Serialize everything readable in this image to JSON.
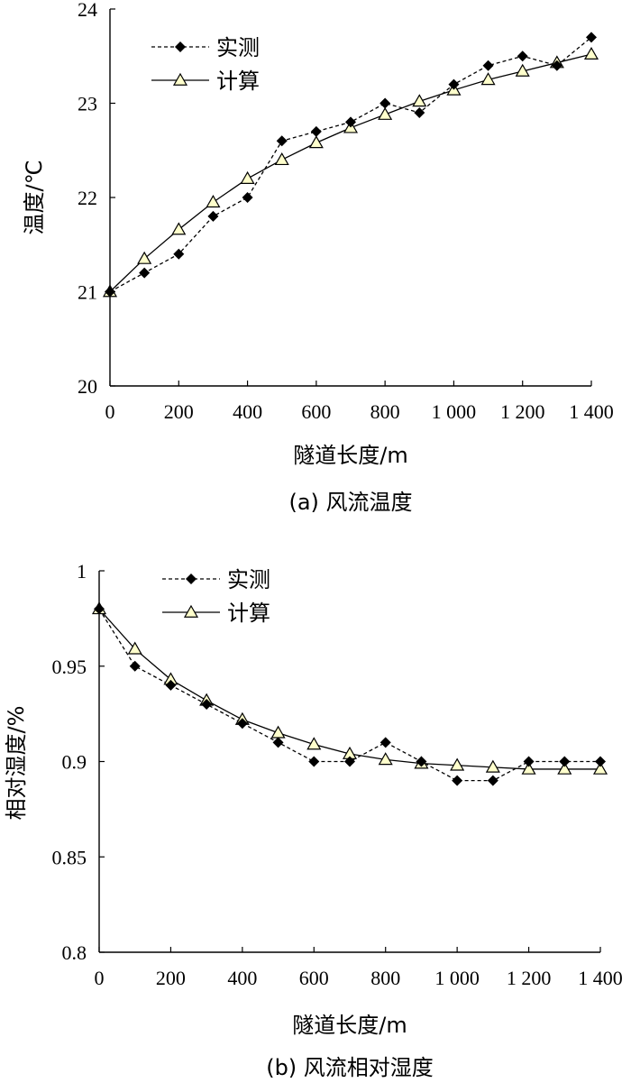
{
  "chart_data": [
    {
      "type": "line",
      "title": "",
      "caption": "(a) 风流温度",
      "xlabel": "隧道长度/m",
      "ylabel": "温度/℃",
      "xlim": [
        0,
        1400
      ],
      "ylim": [
        20,
        24
      ],
      "xticks": [
        0,
        200,
        400,
        600,
        800,
        1000,
        1200,
        1400
      ],
      "xtick_labels": [
        "0",
        "200",
        "400",
        "600",
        "800",
        "1 000",
        "1 200",
        "1 400"
      ],
      "yticks": [
        20,
        21,
        22,
        23,
        24
      ],
      "ytick_labels": [
        "20",
        "21",
        "22",
        "23",
        "24"
      ],
      "legend_position": "top-left",
      "x": [
        0,
        100,
        200,
        300,
        400,
        500,
        600,
        700,
        800,
        900,
        1000,
        1100,
        1200,
        1300,
        1400
      ],
      "series": [
        {
          "name": "实测",
          "style": "dashed",
          "marker": "diamond",
          "values": [
            21.0,
            21.2,
            21.4,
            21.8,
            22.0,
            22.6,
            22.7,
            22.8,
            23.0,
            22.9,
            23.2,
            23.4,
            23.5,
            23.4,
            23.7
          ]
        },
        {
          "name": "计算",
          "style": "solid",
          "marker": "triangle",
          "values": [
            21.0,
            21.35,
            21.66,
            21.95,
            22.2,
            22.4,
            22.58,
            22.74,
            22.88,
            23.02,
            23.14,
            23.25,
            23.34,
            23.43,
            23.52
          ]
        }
      ]
    },
    {
      "type": "line",
      "title": "",
      "caption": "(b) 风流相对湿度",
      "xlabel": "隧道长度/m",
      "ylabel": "相对湿度/%",
      "xlim": [
        0,
        1400
      ],
      "ylim": [
        0.8,
        1.0
      ],
      "xticks": [
        0,
        200,
        400,
        600,
        800,
        1000,
        1200,
        1400
      ],
      "xtick_labels": [
        "0",
        "200",
        "400",
        "600",
        "800",
        "1 000",
        "1 200",
        "1 400"
      ],
      "yticks": [
        0.8,
        0.85,
        0.9,
        0.95,
        1.0
      ],
      "ytick_labels": [
        "0.8",
        "0.85",
        "0.9",
        "0.95",
        "1"
      ],
      "legend_position": "top-left",
      "x": [
        0,
        100,
        200,
        300,
        400,
        500,
        600,
        700,
        800,
        900,
        1000,
        1100,
        1200,
        1300,
        1400
      ],
      "series": [
        {
          "name": "实测",
          "style": "dashed",
          "marker": "diamond",
          "values": [
            0.98,
            0.95,
            0.94,
            0.93,
            0.92,
            0.91,
            0.9,
            0.9,
            0.91,
            0.9,
            0.89,
            0.89,
            0.9,
            0.9,
            0.9
          ]
        },
        {
          "name": "计算",
          "style": "solid",
          "marker": "triangle",
          "values": [
            0.98,
            0.959,
            0.943,
            0.932,
            0.922,
            0.915,
            0.909,
            0.904,
            0.901,
            0.899,
            0.898,
            0.897,
            0.896,
            0.896,
            0.896
          ]
        }
      ]
    }
  ]
}
